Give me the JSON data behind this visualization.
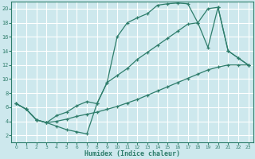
{
  "xlabel": "Humidex (Indice chaleur)",
  "bg_color": "#cde8ed",
  "grid_color": "#ffffff",
  "line_color": "#2e7d6b",
  "xlim": [
    -0.5,
    23.5
  ],
  "ylim": [
    1.0,
    21.0
  ],
  "xticks": [
    0,
    1,
    2,
    3,
    4,
    5,
    6,
    7,
    8,
    9,
    10,
    11,
    12,
    13,
    14,
    15,
    16,
    17,
    18,
    19,
    20,
    21,
    22,
    23
  ],
  "yticks": [
    2,
    4,
    6,
    8,
    10,
    12,
    14,
    16,
    18,
    20
  ],
  "curve1_x": [
    0,
    1,
    2,
    3,
    4,
    5,
    6,
    7,
    8,
    9,
    10,
    11,
    12,
    13,
    14,
    15,
    16,
    17,
    18,
    19,
    20,
    21,
    22,
    23
  ],
  "curve1_y": [
    6.5,
    5.7,
    4.2,
    3.8,
    3.3,
    2.8,
    2.5,
    2.2,
    6.5,
    9.5,
    16.0,
    18.0,
    18.7,
    19.3,
    20.5,
    20.7,
    20.8,
    20.7,
    18.0,
    20.0,
    20.2,
    14.0,
    13.0,
    12.0
  ],
  "curve2_x": [
    0,
    1,
    2,
    3,
    4,
    5,
    6,
    7,
    8,
    9,
    10,
    11,
    12,
    13,
    14,
    15,
    16,
    17,
    18,
    19,
    20,
    21,
    22,
    23
  ],
  "curve2_y": [
    6.5,
    5.7,
    4.2,
    3.8,
    4.8,
    5.3,
    6.2,
    6.8,
    6.5,
    9.5,
    10.5,
    11.5,
    12.8,
    13.8,
    14.8,
    15.8,
    16.8,
    17.8,
    18.0,
    14.5,
    20.2,
    14.0,
    13.0,
    12.0
  ],
  "curve3_x": [
    0,
    1,
    2,
    3,
    4,
    5,
    6,
    7,
    8,
    9,
    10,
    11,
    12,
    13,
    14,
    15,
    16,
    17,
    18,
    19,
    20,
    21,
    22,
    23
  ],
  "curve3_y": [
    6.5,
    5.7,
    4.2,
    3.8,
    4.0,
    4.3,
    4.7,
    5.0,
    5.3,
    5.7,
    6.1,
    6.6,
    7.1,
    7.7,
    8.3,
    8.9,
    9.5,
    10.1,
    10.7,
    11.3,
    11.7,
    12.0,
    12.0,
    12.0
  ]
}
